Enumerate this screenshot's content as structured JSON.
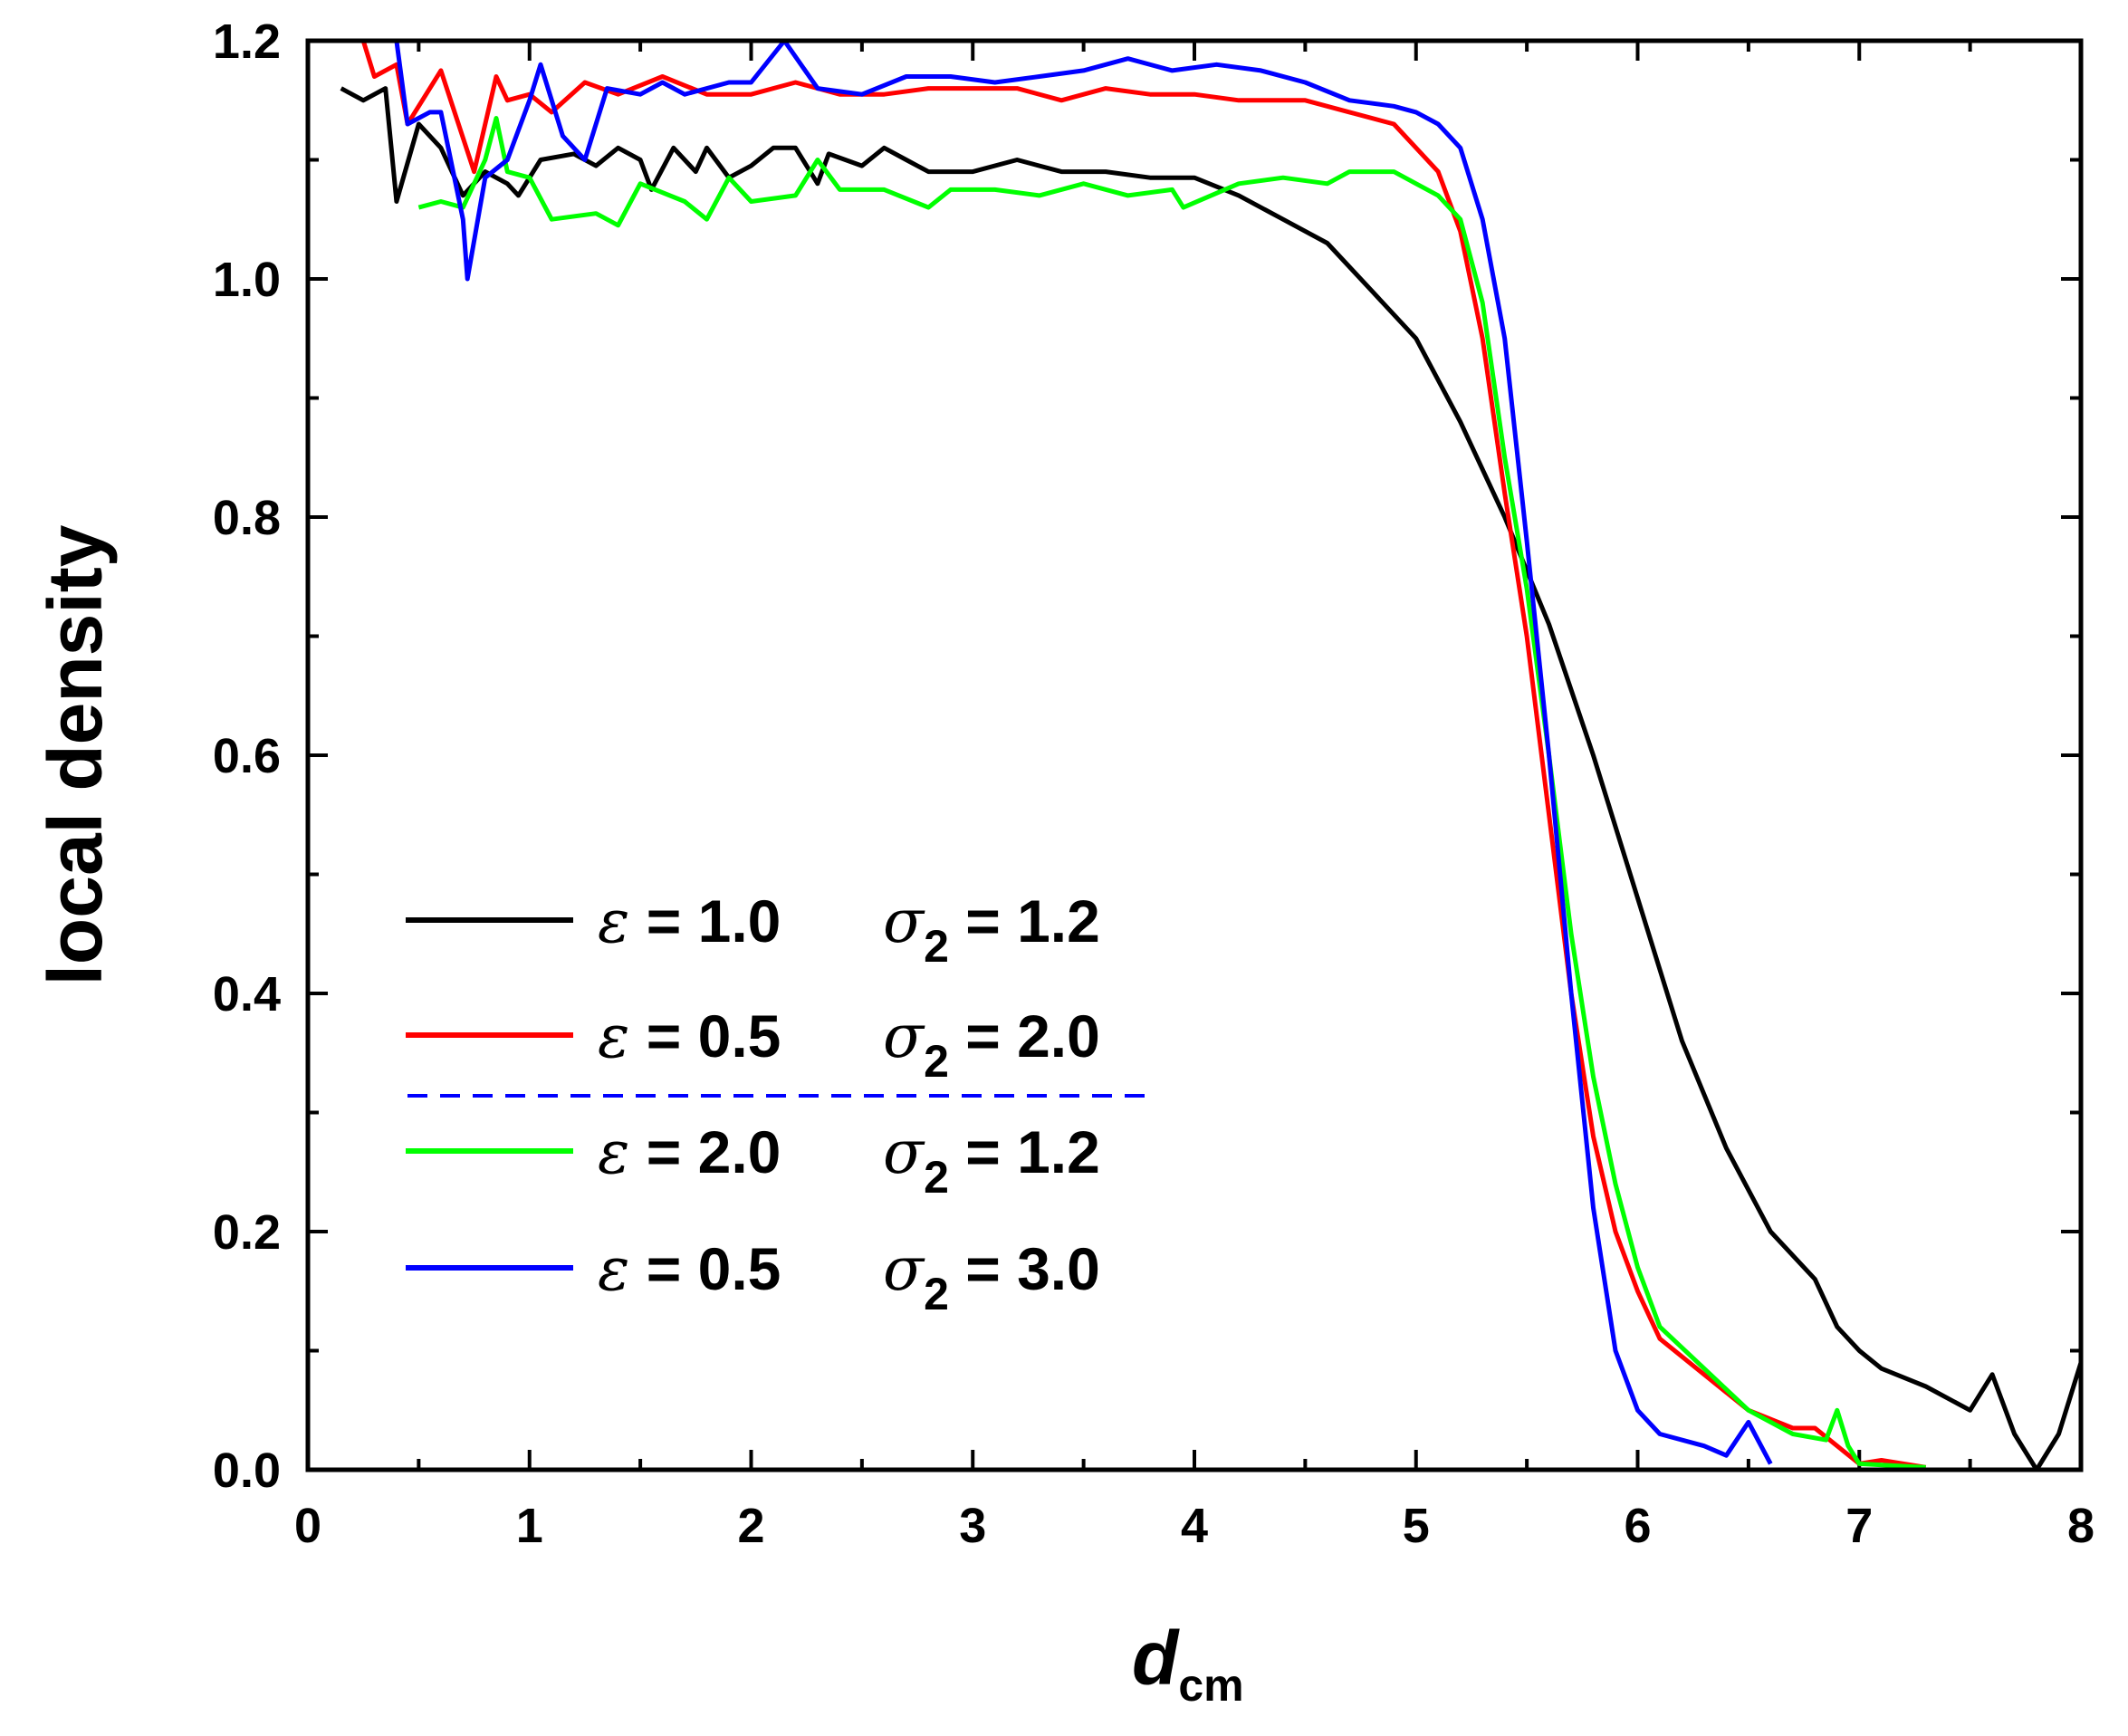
{
  "chart_data": {
    "type": "line",
    "title": "",
    "xlabel": "d",
    "xlabel_sub": "cm",
    "ylabel": "local density",
    "xlim": [
      0,
      8
    ],
    "ylim": [
      0,
      1.2
    ],
    "xticks": [
      "0",
      "1",
      "2",
      "3",
      "4",
      "5",
      "6",
      "7",
      "8"
    ],
    "yticks": [
      "0.0",
      "0.2",
      "0.4",
      "0.6",
      "0.8",
      "1.0",
      "1.2"
    ],
    "grid": false,
    "legend_position": "left-center",
    "series": [
      {
        "name": "ε = 1.0   σ2 = 1.2",
        "eps": "1.0",
        "sigma": "1.2",
        "color": "#000000",
        "x": [
          0.15,
          0.25,
          0.35,
          0.4,
          0.5,
          0.6,
          0.7,
          0.8,
          0.9,
          0.95,
          1.05,
          1.2,
          1.3,
          1.4,
          1.5,
          1.55,
          1.65,
          1.75,
          1.8,
          1.9,
          2.0,
          2.1,
          2.2,
          2.3,
          2.35,
          2.5,
          2.6,
          2.7,
          2.8,
          3.0,
          3.2,
          3.4,
          3.6,
          3.8,
          4.0,
          4.2,
          4.4,
          4.6,
          4.8,
          5.0,
          5.2,
          5.4,
          5.6,
          5.8,
          6.0,
          6.2,
          6.4,
          6.6,
          6.8,
          6.9,
          7.0,
          7.1,
          7.3,
          7.5,
          7.6,
          7.7,
          7.8,
          7.9,
          8.0
        ],
        "y": [
          1.16,
          1.15,
          1.16,
          1.065,
          1.13,
          1.11,
          1.07,
          1.09,
          1.08,
          1.07,
          1.1,
          1.105,
          1.095,
          1.11,
          1.1,
          1.075,
          1.11,
          1.09,
          1.11,
          1.085,
          1.095,
          1.11,
          1.11,
          1.08,
          1.105,
          1.095,
          1.11,
          1.1,
          1.09,
          1.09,
          1.1,
          1.09,
          1.09,
          1.085,
          1.085,
          1.07,
          1.05,
          1.03,
          0.99,
          0.95,
          0.88,
          0.8,
          0.71,
          0.6,
          0.48,
          0.36,
          0.27,
          0.2,
          0.16,
          0.12,
          0.1,
          0.085,
          0.07,
          0.05,
          0.08,
          0.03,
          0.0,
          0.03,
          0.09
        ]
      },
      {
        "name": "ε = 0.5   σ2 = 2.0",
        "eps": "0.5",
        "sigma": "2.0",
        "color": "#ff0000",
        "x": [
          0.15,
          0.25,
          0.3,
          0.4,
          0.45,
          0.6,
          0.75,
          0.85,
          0.9,
          1.0,
          1.1,
          1.25,
          1.4,
          1.6,
          1.8,
          2.0,
          2.2,
          2.4,
          2.6,
          2.8,
          3.0,
          3.2,
          3.4,
          3.6,
          3.8,
          4.0,
          4.2,
          4.5,
          4.7,
          4.9,
          5.0,
          5.1,
          5.2,
          5.3,
          5.4,
          5.5,
          5.6,
          5.7,
          5.8,
          5.9,
          6.0,
          6.1,
          6.3,
          6.5,
          6.7,
          6.8,
          6.9,
          7.0,
          7.1,
          7.3
        ],
        "y": [
          1.2,
          1.2,
          1.17,
          1.18,
          1.13,
          1.175,
          1.09,
          1.17,
          1.15,
          1.155,
          1.14,
          1.165,
          1.155,
          1.17,
          1.155,
          1.155,
          1.165,
          1.155,
          1.155,
          1.16,
          1.16,
          1.16,
          1.15,
          1.16,
          1.155,
          1.155,
          1.15,
          1.15,
          1.14,
          1.13,
          1.11,
          1.09,
          1.04,
          0.95,
          0.82,
          0.7,
          0.55,
          0.4,
          0.28,
          0.2,
          0.15,
          0.11,
          0.08,
          0.05,
          0.035,
          0.035,
          0.02,
          0.005,
          0.008,
          0.002
        ]
      },
      {
        "name": "ε = 2.0   σ2 = 1.2",
        "eps": "2.0",
        "sigma": "1.2",
        "color": "#00ff00",
        "x": [
          0.5,
          0.6,
          0.7,
          0.8,
          0.85,
          0.9,
          1.0,
          1.1,
          1.3,
          1.4,
          1.5,
          1.7,
          1.8,
          1.9,
          2.0,
          2.2,
          2.3,
          2.4,
          2.6,
          2.8,
          2.9,
          3.1,
          3.3,
          3.5,
          3.7,
          3.9,
          3.95,
          4.2,
          4.4,
          4.6,
          4.7,
          4.9,
          5.0,
          5.1,
          5.2,
          5.3,
          5.4,
          5.5,
          5.6,
          5.7,
          5.8,
          5.9,
          6.0,
          6.1,
          6.3,
          6.5,
          6.7,
          6.85,
          6.9,
          6.95,
          7.0,
          7.3
        ],
        "y": [
          1.06,
          1.065,
          1.06,
          1.1,
          1.135,
          1.09,
          1.085,
          1.05,
          1.055,
          1.045,
          1.08,
          1.065,
          1.05,
          1.085,
          1.065,
          1.07,
          1.1,
          1.075,
          1.075,
          1.06,
          1.075,
          1.075,
          1.07,
          1.08,
          1.07,
          1.075,
          1.06,
          1.08,
          1.085,
          1.08,
          1.09,
          1.09,
          1.08,
          1.07,
          1.05,
          0.98,
          0.85,
          0.74,
          0.6,
          0.45,
          0.33,
          0.24,
          0.17,
          0.12,
          0.085,
          0.05,
          0.03,
          0.025,
          0.05,
          0.02,
          0.005,
          0.002
        ]
      },
      {
        "name": "ε = 0.5   σ2 = 3.0",
        "eps": "0.5",
        "sigma": "3.0",
        "color": "#0000ff",
        "x": [
          0.4,
          0.45,
          0.55,
          0.6,
          0.7,
          0.72,
          0.8,
          0.9,
          1.0,
          1.05,
          1.15,
          1.25,
          1.35,
          1.5,
          1.6,
          1.7,
          1.9,
          2.0,
          2.15,
          2.3,
          2.5,
          2.7,
          2.9,
          3.1,
          3.3,
          3.5,
          3.7,
          3.9,
          4.1,
          4.3,
          4.5,
          4.7,
          4.9,
          5.0,
          5.1,
          5.2,
          5.3,
          5.4,
          5.5,
          5.6,
          5.7,
          5.8,
          5.9,
          6.0,
          6.1,
          6.3,
          6.4,
          6.5,
          6.6
        ],
        "y": [
          1.2,
          1.13,
          1.14,
          1.14,
          1.05,
          1.0,
          1.085,
          1.1,
          1.15,
          1.18,
          1.12,
          1.1,
          1.16,
          1.155,
          1.165,
          1.155,
          1.165,
          1.165,
          1.2,
          1.16,
          1.155,
          1.17,
          1.17,
          1.165,
          1.17,
          1.175,
          1.185,
          1.175,
          1.18,
          1.175,
          1.165,
          1.15,
          1.145,
          1.14,
          1.13,
          1.11,
          1.05,
          0.95,
          0.78,
          0.6,
          0.4,
          0.22,
          0.1,
          0.05,
          0.03,
          0.02,
          0.012,
          0.04,
          0.005
        ]
      }
    ]
  }
}
